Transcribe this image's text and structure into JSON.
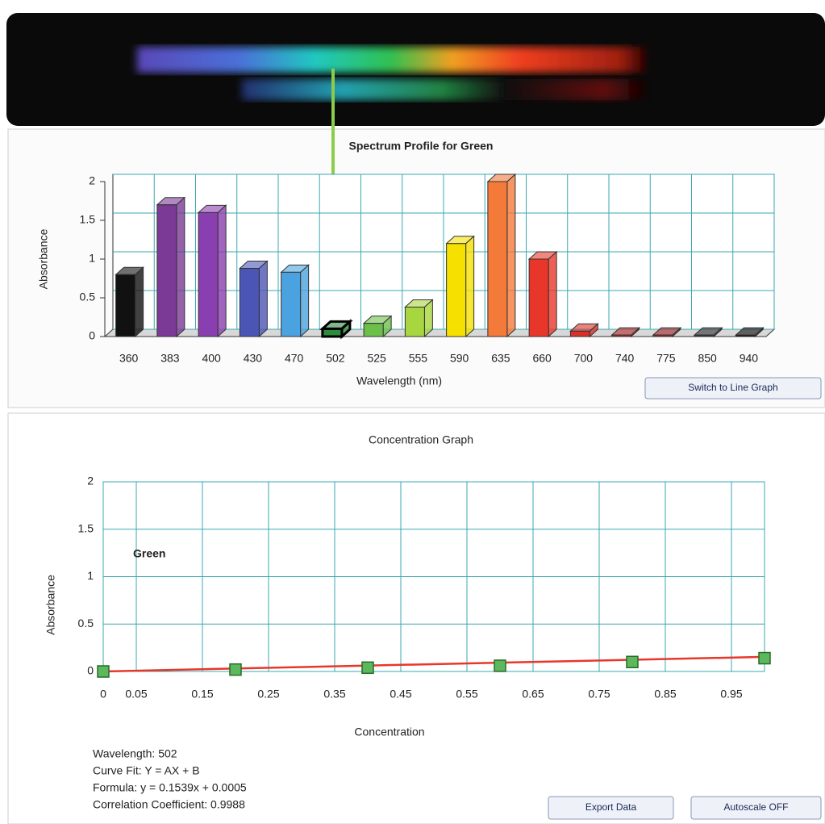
{
  "chart_data": [
    {
      "type": "bar",
      "title": "Spectrum Profile for Green",
      "x_label": "Wavelength (nm)",
      "y_label": "Absorbance",
      "categories": [
        "360",
        "383",
        "400",
        "430",
        "470",
        "502",
        "525",
        "555",
        "590",
        "635",
        "660",
        "700",
        "740",
        "775",
        "850",
        "940"
      ],
      "values": [
        0.8,
        1.7,
        1.6,
        0.88,
        0.83,
        0.1,
        0.17,
        0.38,
        1.2,
        2.0,
        1.0,
        0.07,
        0.02,
        0.02,
        0.02,
        0.02
      ],
      "colors": [
        "#111111",
        "#7b3a96",
        "#8a3fb0",
        "#4b55b5",
        "#4aa3e0",
        "#2e8b3e",
        "#6cc04a",
        "#a8d640",
        "#f5e000",
        "#f47a3a",
        "#e8372a",
        "#d9302a",
        "#b8282a",
        "#a0252a",
        "#333333",
        "#111111"
      ],
      "ylim": [
        0,
        2
      ],
      "yticks": [
        0,
        0.5,
        1,
        1.5,
        2
      ],
      "grid": true
    },
    {
      "type": "scatter",
      "title": "Concentration Graph",
      "x_label": "Concentration",
      "y_label": "Absorbance",
      "annotation": "Green",
      "x": [
        0,
        0.2,
        0.4,
        0.6,
        0.8,
        1.0
      ],
      "values": [
        0,
        0.02,
        0.04,
        0.06,
        0.1,
        0.14
      ],
      "color": "#5cb85c",
      "fit": {
        "x": [
          0,
          1
        ],
        "values": [
          0.0005,
          0.154
        ],
        "color": "#e8372a"
      },
      "xlim": [
        0,
        1
      ],
      "xticks": [
        0,
        0.05,
        0.15,
        0.25,
        0.35,
        0.45,
        0.55,
        0.65,
        0.75,
        0.85,
        0.95
      ],
      "ylim": [
        0,
        2
      ],
      "yticks": [
        0,
        0.5,
        1,
        1.5,
        2
      ],
      "grid": true
    }
  ],
  "info": [
    "Wavelength:  502",
    "Curve Fit: Y = AX + B",
    "Formula: y = 0.1539x + 0.0005",
    "Correlation Coefficient: 0.9988"
  ],
  "buttons": [
    "Switch to Line Graph",
    "Export Data",
    "Autoscale OFF"
  ]
}
